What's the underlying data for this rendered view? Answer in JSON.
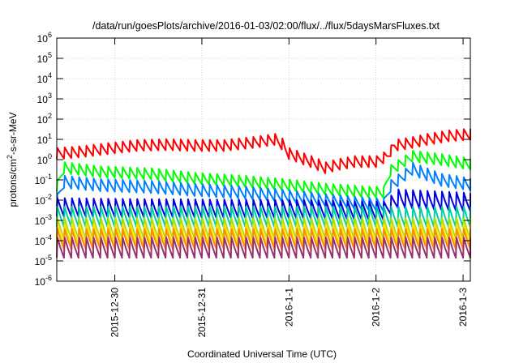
{
  "chart_data": {
    "type": "line",
    "title": "/data/run/goesPlots/archive/2016-01-03/02:00/flux/../flux/5daysMarsFluxes.txt",
    "xlabel": "Coordinated Universal Time (UTC)",
    "ylabel": "protons/cm²-s-sr-MeV",
    "yscale": "log",
    "ylim": [
      1e-06,
      1000000.0
    ],
    "xlim": [
      "2015-12-29T08:00",
      "2016-01-03T02:00"
    ],
    "grid": true,
    "legend": "none",
    "y_ticks": [
      {
        "base": "10",
        "exp": "-6"
      },
      {
        "base": "10",
        "exp": "-5"
      },
      {
        "base": "10",
        "exp": "-4"
      },
      {
        "base": "10",
        "exp": "-3"
      },
      {
        "base": "10",
        "exp": "-2"
      },
      {
        "base": "10",
        "exp": "-1"
      },
      {
        "base": "10",
        "exp": "0"
      },
      {
        "base": "10",
        "exp": "1"
      },
      {
        "base": "10",
        "exp": "2"
      },
      {
        "base": "10",
        "exp": "3"
      },
      {
        "base": "10",
        "exp": "4"
      },
      {
        "base": "10",
        "exp": "5"
      },
      {
        "base": "10",
        "exp": "6"
      }
    ],
    "x_ticks": [
      {
        "label": "2015-12-30",
        "t": "2015-12-30T00:00"
      },
      {
        "label": "2015-12-31",
        "t": "2015-12-31T00:00"
      },
      {
        "label": "2016-1-1",
        "t": "2016-01-01T00:00"
      },
      {
        "label": "2016-1-2",
        "t": "2016-01-02T00:00"
      },
      {
        "label": "2016-1-3",
        "t": "2016-01-03T00:00"
      }
    ],
    "series": [
      {
        "color": "#ff0000",
        "x": [
          "2015-12-29T08:00",
          "2015-12-29T15:00",
          "2015-12-29T22:00",
          "2015-12-30T06:00",
          "2015-12-30T14:00",
          "2015-12-30T22:00",
          "2015-12-31T06:00",
          "2015-12-31T14:00",
          "2015-12-31T20:00",
          "2015-12-31T22:00",
          "2016-01-01T00:00",
          "2016-01-01T06:00",
          "2016-01-01T10:00",
          "2016-01-01T14:00",
          "2016-01-01T18:00",
          "2016-01-02T00:00",
          "2016-01-02T03:00",
          "2016-01-02T05:00",
          "2016-01-02T10:00",
          "2016-01-02T14:00",
          "2016-01-02T20:00",
          "2016-01-03T02:00"
        ],
        "y": [
          2,
          2.5,
          3.5,
          5,
          5.5,
          5,
          5,
          7,
          10,
          6,
          2,
          0.8,
          0.4,
          0.6,
          0.8,
          0.8,
          1.5,
          5,
          7,
          10,
          15,
          18
        ],
        "sawtooth": 0.55
      },
      {
        "color": "#00ff00",
        "x": [
          "2015-12-29T08:00",
          "2015-12-29T10:00",
          "2015-12-29T20:00",
          "2015-12-30T10:00",
          "2015-12-30T22:00",
          "2015-12-31T10:00",
          "2015-12-31T22:00",
          "2016-01-01T10:00",
          "2016-01-01T22:00",
          "2016-01-02T02:00",
          "2016-01-02T04:00",
          "2016-01-02T10:00",
          "2016-01-02T18:00",
          "2016-01-03T02:00"
        ],
        "y": [
          0.05,
          0.4,
          0.25,
          0.2,
          0.12,
          0.09,
          0.06,
          0.035,
          0.025,
          0.025,
          0.3,
          1.5,
          1.0,
          0.6
        ],
        "sawtooth": 0.55
      },
      {
        "color": "#0080ff",
        "x": [
          "2015-12-29T08:00",
          "2015-12-29T10:00",
          "2015-12-29T20:00",
          "2015-12-30T10:00",
          "2015-12-30T22:00",
          "2015-12-31T10:00",
          "2015-12-31T22:00",
          "2016-01-01T10:00",
          "2016-01-01T22:00",
          "2016-01-02T02:00",
          "2016-01-02T04:00",
          "2016-01-02T10:00",
          "2016-01-02T18:00",
          "2016-01-03T02:00"
        ],
        "y": [
          0.01,
          0.08,
          0.055,
          0.045,
          0.032,
          0.025,
          0.017,
          0.01,
          0.0065,
          0.006,
          0.05,
          0.35,
          0.1,
          0.06
        ],
        "sawtooth": 0.6
      },
      {
        "color": "#0000e0",
        "x": [
          "2015-12-29T08:00",
          "2015-12-30T08:00",
          "2015-12-31T08:00",
          "2016-01-01T08:00",
          "2016-01-01T22:00",
          "2016-01-02T02:00",
          "2016-01-02T06:00",
          "2016-01-03T02:00"
        ],
        "y": [
          0.0045,
          0.004,
          0.0038,
          0.0035,
          0.003,
          0.003,
          0.012,
          0.008
        ],
        "sawtooth": 0.9
      },
      {
        "color": "#00d0a0",
        "x": [
          "2015-12-29T08:00",
          "2016-01-03T02:00"
        ],
        "y": [
          0.0015,
          0.0015
        ],
        "sawtooth": 1.0
      },
      {
        "color": "#b0e000",
        "x": [
          "2015-12-29T08:00",
          "2016-01-03T02:00"
        ],
        "y": [
          0.0004,
          0.0004
        ],
        "sawtooth": 1.0
      },
      {
        "color": "#ffe000",
        "x": [
          "2015-12-29T08:00",
          "2016-01-03T02:00"
        ],
        "y": [
          0.0002,
          0.0002
        ],
        "sawtooth": 1.0
      },
      {
        "color": "#ff8c00",
        "x": [
          "2015-12-29T08:00",
          "2016-01-03T02:00"
        ],
        "y": [
          0.00012,
          0.00012
        ],
        "sawtooth": 1.0
      },
      {
        "color": "#9a3070",
        "x": [
          "2015-12-29T08:00",
          "2016-01-03T02:00"
        ],
        "y": [
          4.5e-05,
          4.5e-05
        ],
        "sawtooth": 1.0
      }
    ]
  }
}
